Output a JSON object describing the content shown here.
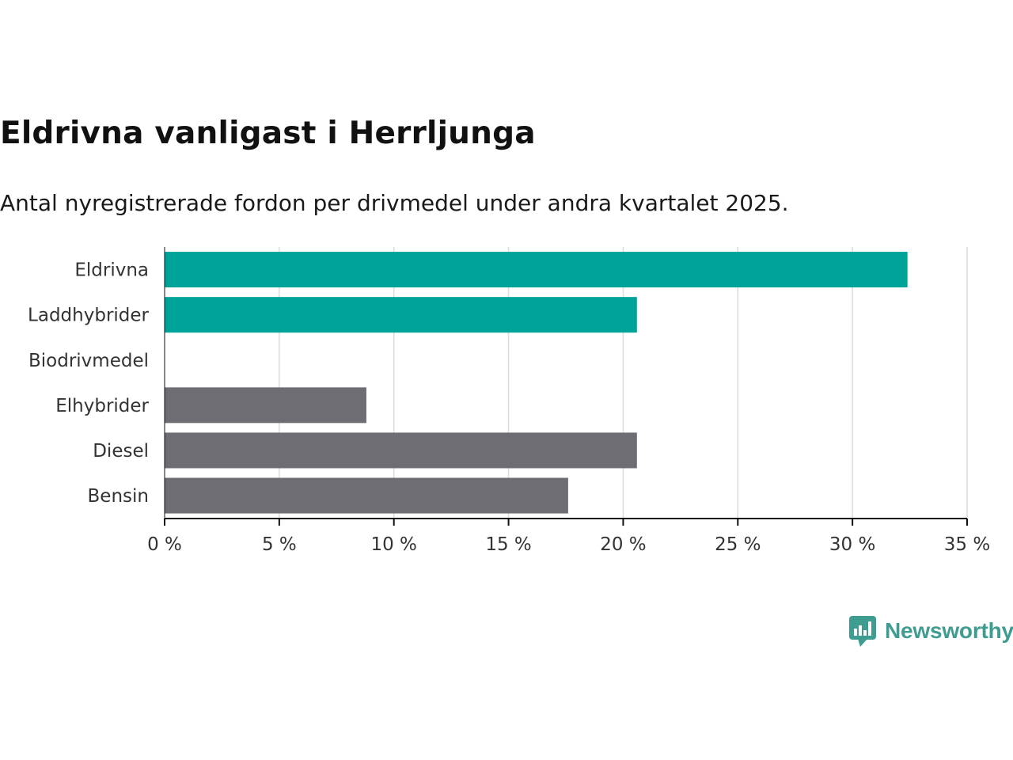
{
  "title": "Eldrivna vanligast i Herrljunga",
  "subtitle": "Antal nyregistrerade fordon per drivmedel under andra kvartalet 2025.",
  "brand": {
    "name": "Newsworthy",
    "color": "#3f9c90"
  },
  "chart_data": {
    "type": "bar",
    "orientation": "horizontal",
    "categories": [
      "Eldrivna",
      "Laddhybrider",
      "Biodrivmedel",
      "Elhybrider",
      "Diesel",
      "Bensin"
    ],
    "values": [
      32.4,
      20.6,
      0,
      8.8,
      20.6,
      17.6
    ],
    "bar_colors": [
      "#00a398",
      "#00a398",
      "#00a398",
      "#6e6d73",
      "#6e6d73",
      "#6e6d73"
    ],
    "x_ticks": [
      "0 %",
      "5 %",
      "10 %",
      "15 %",
      "20 %",
      "25 %",
      "30 %",
      "35 %"
    ],
    "xlim": [
      0,
      35
    ],
    "x_tick_step": 5,
    "grid": "vertical",
    "legend": "none"
  }
}
